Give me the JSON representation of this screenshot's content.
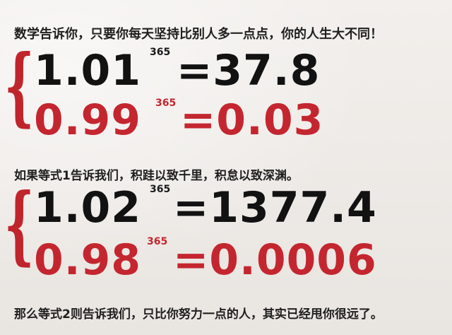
{
  "lines": {
    "title": "数学告诉你，只要你每天坚持比别人多一点点，你的人生大不同！",
    "middle": "如果等式1告诉我们，积跬以致千里，积怠以致深渊。",
    "bottom": "那么等式2则告诉我们，只比你努力一点的人，其实已经甩你很远了。"
  },
  "equation1": {
    "a_base": "1.01",
    "a_exp": "365",
    "a_result": "=37.8",
    "b_base": "0.99",
    "b_exp": "365",
    "b_result": "=0.03"
  },
  "equation2": {
    "a_base": "1.02",
    "a_exp": "365",
    "a_result": "=1377.4",
    "b_base": "0.98",
    "b_exp": "365",
    "b_result": "=0.0006"
  },
  "colors": {
    "black": "#121212",
    "red": "#c4262f"
  }
}
